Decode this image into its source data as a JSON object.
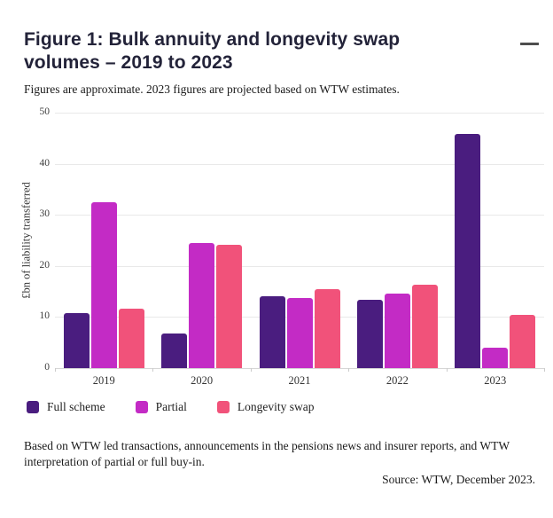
{
  "header": {
    "title": "Figure 1: Bulk annuity and longevity swap volumes – 2019 to 2023",
    "menu_icon": "hamburger-menu-icon"
  },
  "subtitle": "Figures are approximate. 2023 figures are projected based on WTW estimates.",
  "chart_data": {
    "type": "bar",
    "title": "Figure 1: Bulk annuity and longevity swap volumes – 2019 to 2023",
    "subtitle": "Figures are approximate. 2023 figures are projected based on WTW estimates.",
    "categories": [
      "2019",
      "2020",
      "2021",
      "2022",
      "2023"
    ],
    "series": [
      {
        "name": "Full scheme",
        "color": "#4A1D7F",
        "values": [
          10.7,
          6.7,
          14.0,
          13.3,
          45.8
        ]
      },
      {
        "name": "Partial",
        "color": "#C32BC5",
        "values": [
          32.5,
          24.5,
          13.7,
          14.6,
          4.0
        ]
      },
      {
        "name": "Longevity swap",
        "color": "#F1527A",
        "values": [
          11.7,
          24.1,
          15.4,
          16.3,
          10.4
        ]
      }
    ],
    "xlabel": "",
    "ylabel": "£bn of liability transferred",
    "ylim": [
      0,
      50
    ],
    "yticks": [
      0,
      10,
      20,
      30,
      40,
      50
    ],
    "grid": true,
    "legend_position": "bottom"
  },
  "footer": {
    "note": "Based on WTW led transactions, announcements in the pensions news and insurer reports, and WTW interpretation of partial or full buy-in.",
    "source": "Source: WTW, December 2023."
  }
}
